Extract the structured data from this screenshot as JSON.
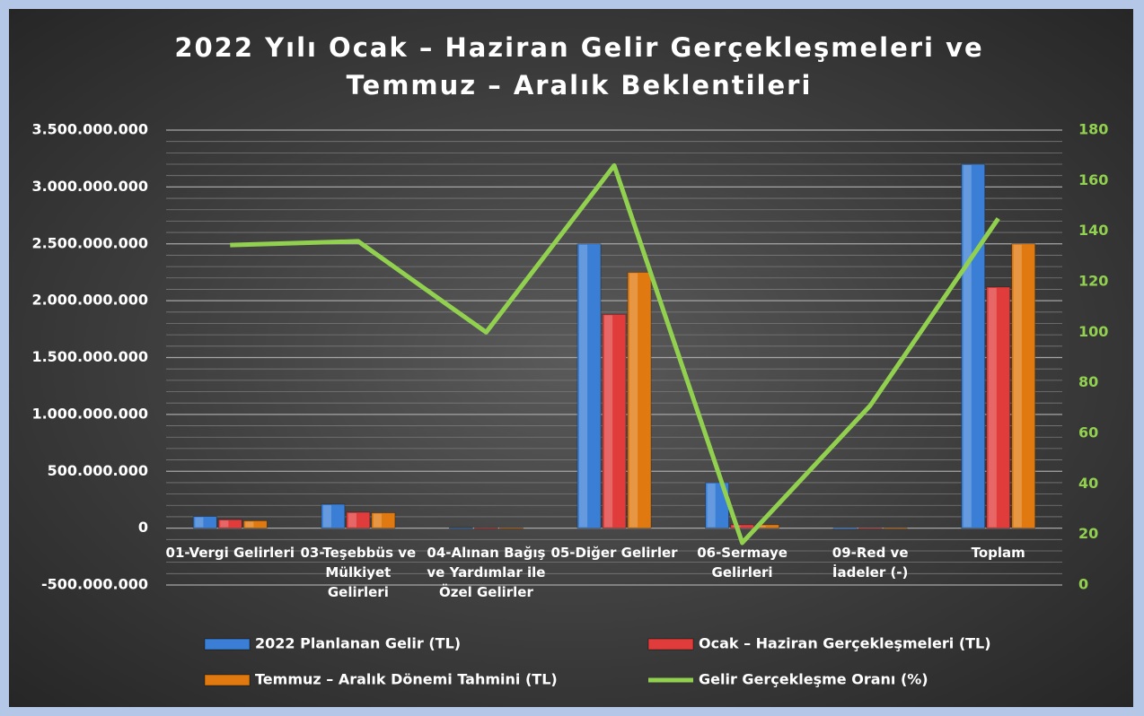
{
  "chart_data": {
    "type": "bar",
    "title": "2022 Yılı Ocak – Haziran Gelir Gerçekleşmeleri ve Temmuz – Aralık Beklentileri",
    "categories": [
      "01-Vergi Gelirleri",
      "03-Teşebbüs ve Mülkiyet Gelirleri",
      "04-Alınan Bağış ve Yardımlar ile Özel Gelirler",
      "05-Diğer Gelirler",
      "06-Sermaye Gelirleri",
      "09-Red ve İadeler (-)",
      "Toplam"
    ],
    "series": [
      {
        "name": "2022 Planlanan Gelir (TL)",
        "color": "#3a7fd5",
        "values": [
          103000000,
          210000000,
          5000000,
          2500000000,
          400000000,
          -10000000,
          3200000000
        ]
      },
      {
        "name": "Ocak – Haziran Gerçekleşmeleri (TL)",
        "color": "#e03c3c",
        "values": [
          75000000,
          140000000,
          3000000,
          1880000000,
          30000000,
          -5000000,
          2120000000
        ]
      },
      {
        "name": "Temmuz – Aralık Dönemi Tahmini (TL)",
        "color": "#e07a10",
        "values": [
          65000000,
          135000000,
          2000000,
          2250000000,
          30000000,
          -5000000,
          2500000000
        ]
      },
      {
        "name": "Gelir Gerçekleşme Oranı (%)",
        "color": "#92d050",
        "type": "line",
        "axis": "y2",
        "values": [
          134.5,
          136,
          100,
          166,
          16.7,
          71,
          145
        ]
      }
    ],
    "ylim": [
      -500000000,
      3500000000
    ],
    "yticks": [
      {
        "value": -500000000,
        "label": "-500.000.000"
      },
      {
        "value": 0,
        "label": "0"
      },
      {
        "value": 500000000,
        "label": "500.000.000"
      },
      {
        "value": 1000000000,
        "label": "1.000.000.000"
      },
      {
        "value": 1500000000,
        "label": "1.500.000.000"
      },
      {
        "value": 2000000000,
        "label": "2.000.000.000"
      },
      {
        "value": 2500000000,
        "label": "2.500.000.000"
      },
      {
        "value": 3000000000,
        "label": "3.000.000.000"
      },
      {
        "value": 3500000000,
        "label": "3.500.000.000"
      }
    ],
    "y2lim": [
      0,
      180
    ],
    "y2ticks": [
      0,
      20,
      40,
      60,
      80,
      100,
      120,
      140,
      160,
      180
    ],
    "grid": true,
    "minor_grid": true,
    "legend": "bottom"
  }
}
